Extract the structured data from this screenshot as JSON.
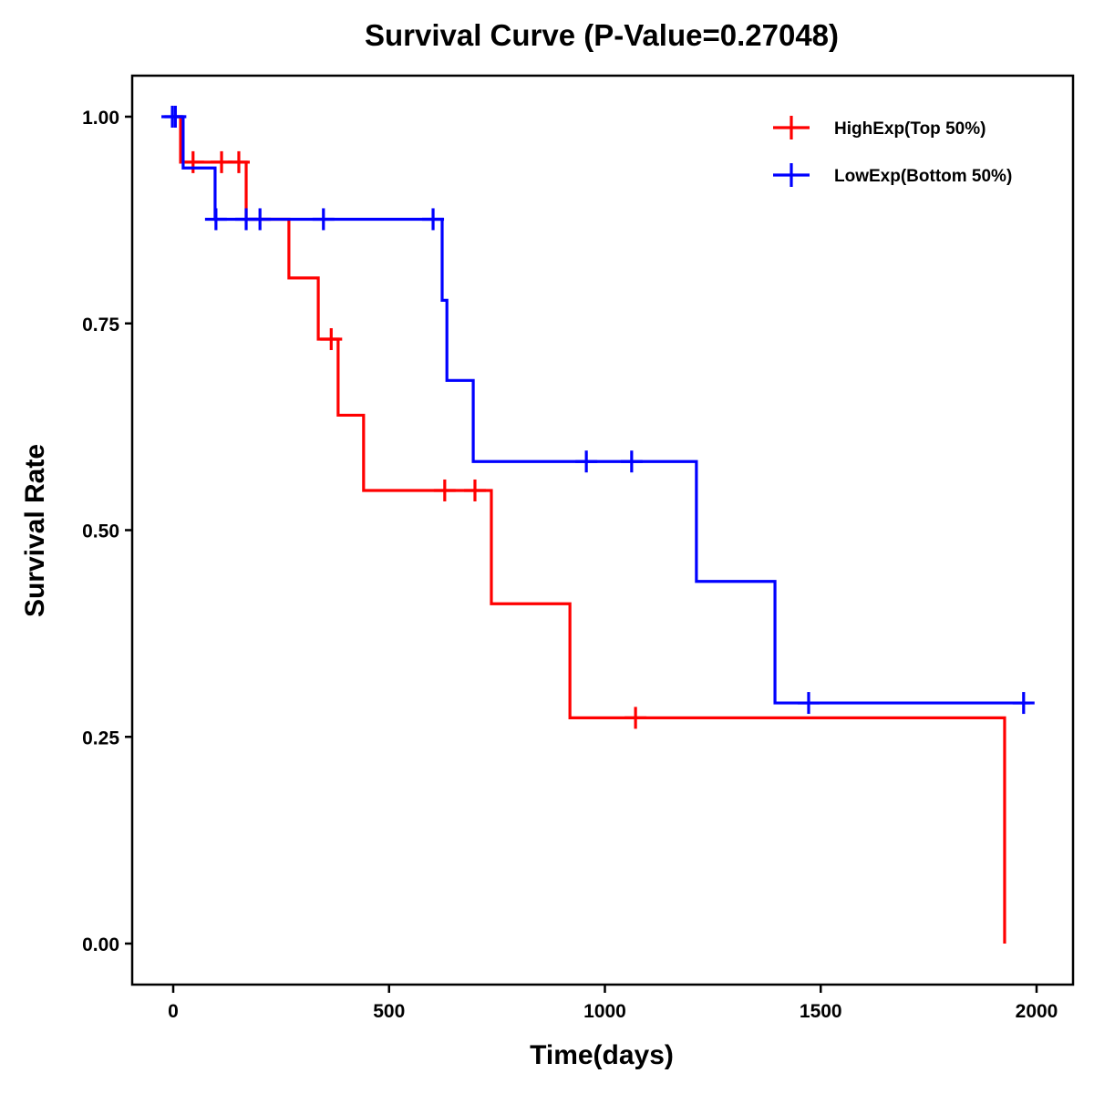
{
  "chart_data": {
    "type": "line",
    "subtype": "kaplan-meier-step",
    "title": "Survival Curve (P-Value=0.27048)",
    "xlabel": "Time(days)",
    "ylabel": "Survival Rate",
    "xlim": [
      -95,
      2095
    ],
    "ylim": [
      -0.05,
      1.05
    ],
    "xticks": [
      0,
      500,
      1000,
      1500,
      2000
    ],
    "xtick_labels": [
      "0",
      "500",
      "1000",
      "1500",
      "2000"
    ],
    "yticks": [
      0,
      0.25,
      0.5,
      0.75,
      1.0
    ],
    "ytick_labels": [
      "0.00",
      "0.25",
      "0.50",
      "0.75",
      "1.00"
    ],
    "grid": false,
    "legend_position": "top-right",
    "series": [
      {
        "name": "HighExp(Top 50%)",
        "color": "#ff0000",
        "steps": [
          {
            "t": 0,
            "s": 1.0
          },
          {
            "t": 17,
            "s": 0.945
          },
          {
            "t": 169,
            "s": 0.876
          },
          {
            "t": 268,
            "s": 0.805
          },
          {
            "t": 336,
            "s": 0.731
          },
          {
            "t": 382,
            "s": 0.639
          },
          {
            "t": 441,
            "s": 0.548
          },
          {
            "t": 737,
            "s": 0.411
          },
          {
            "t": 919,
            "s": 0.273
          },
          {
            "t": 1926,
            "s": 0.0
          }
        ],
        "end_t": 1926,
        "censored": [
          {
            "t": 46,
            "s": 0.945
          },
          {
            "t": 112,
            "s": 0.945
          },
          {
            "t": 152,
            "s": 0.945
          },
          {
            "t": 366,
            "s": 0.731
          },
          {
            "t": 629,
            "s": 0.548
          },
          {
            "t": 699,
            "s": 0.548
          },
          {
            "t": 1071,
            "s": 0.273
          }
        ]
      },
      {
        "name": "LowExp(Bottom 50%)",
        "color": "#0000ff",
        "steps": [
          {
            "t": 0,
            "s": 1.0
          },
          {
            "t": 23,
            "s": 0.938
          },
          {
            "t": 97,
            "s": 0.876
          },
          {
            "t": 623,
            "s": 0.778
          },
          {
            "t": 634,
            "s": 0.681
          },
          {
            "t": 695,
            "s": 0.583
          },
          {
            "t": 1212,
            "s": 0.438
          },
          {
            "t": 1394,
            "s": 0.291
          }
        ],
        "end_t": 1985,
        "censored": [
          {
            "t": -2,
            "s": 1.0
          },
          {
            "t": 5,
            "s": 1.0
          },
          {
            "t": 99,
            "s": 0.876
          },
          {
            "t": 169,
            "s": 0.876
          },
          {
            "t": 201,
            "s": 0.876
          },
          {
            "t": 348,
            "s": 0.876
          },
          {
            "t": 602,
            "s": 0.876
          },
          {
            "t": 957,
            "s": 0.583
          },
          {
            "t": 1062,
            "s": 0.583
          },
          {
            "t": 1472,
            "s": 0.291
          },
          {
            "t": 1970,
            "s": 0.291
          }
        ]
      }
    ]
  }
}
